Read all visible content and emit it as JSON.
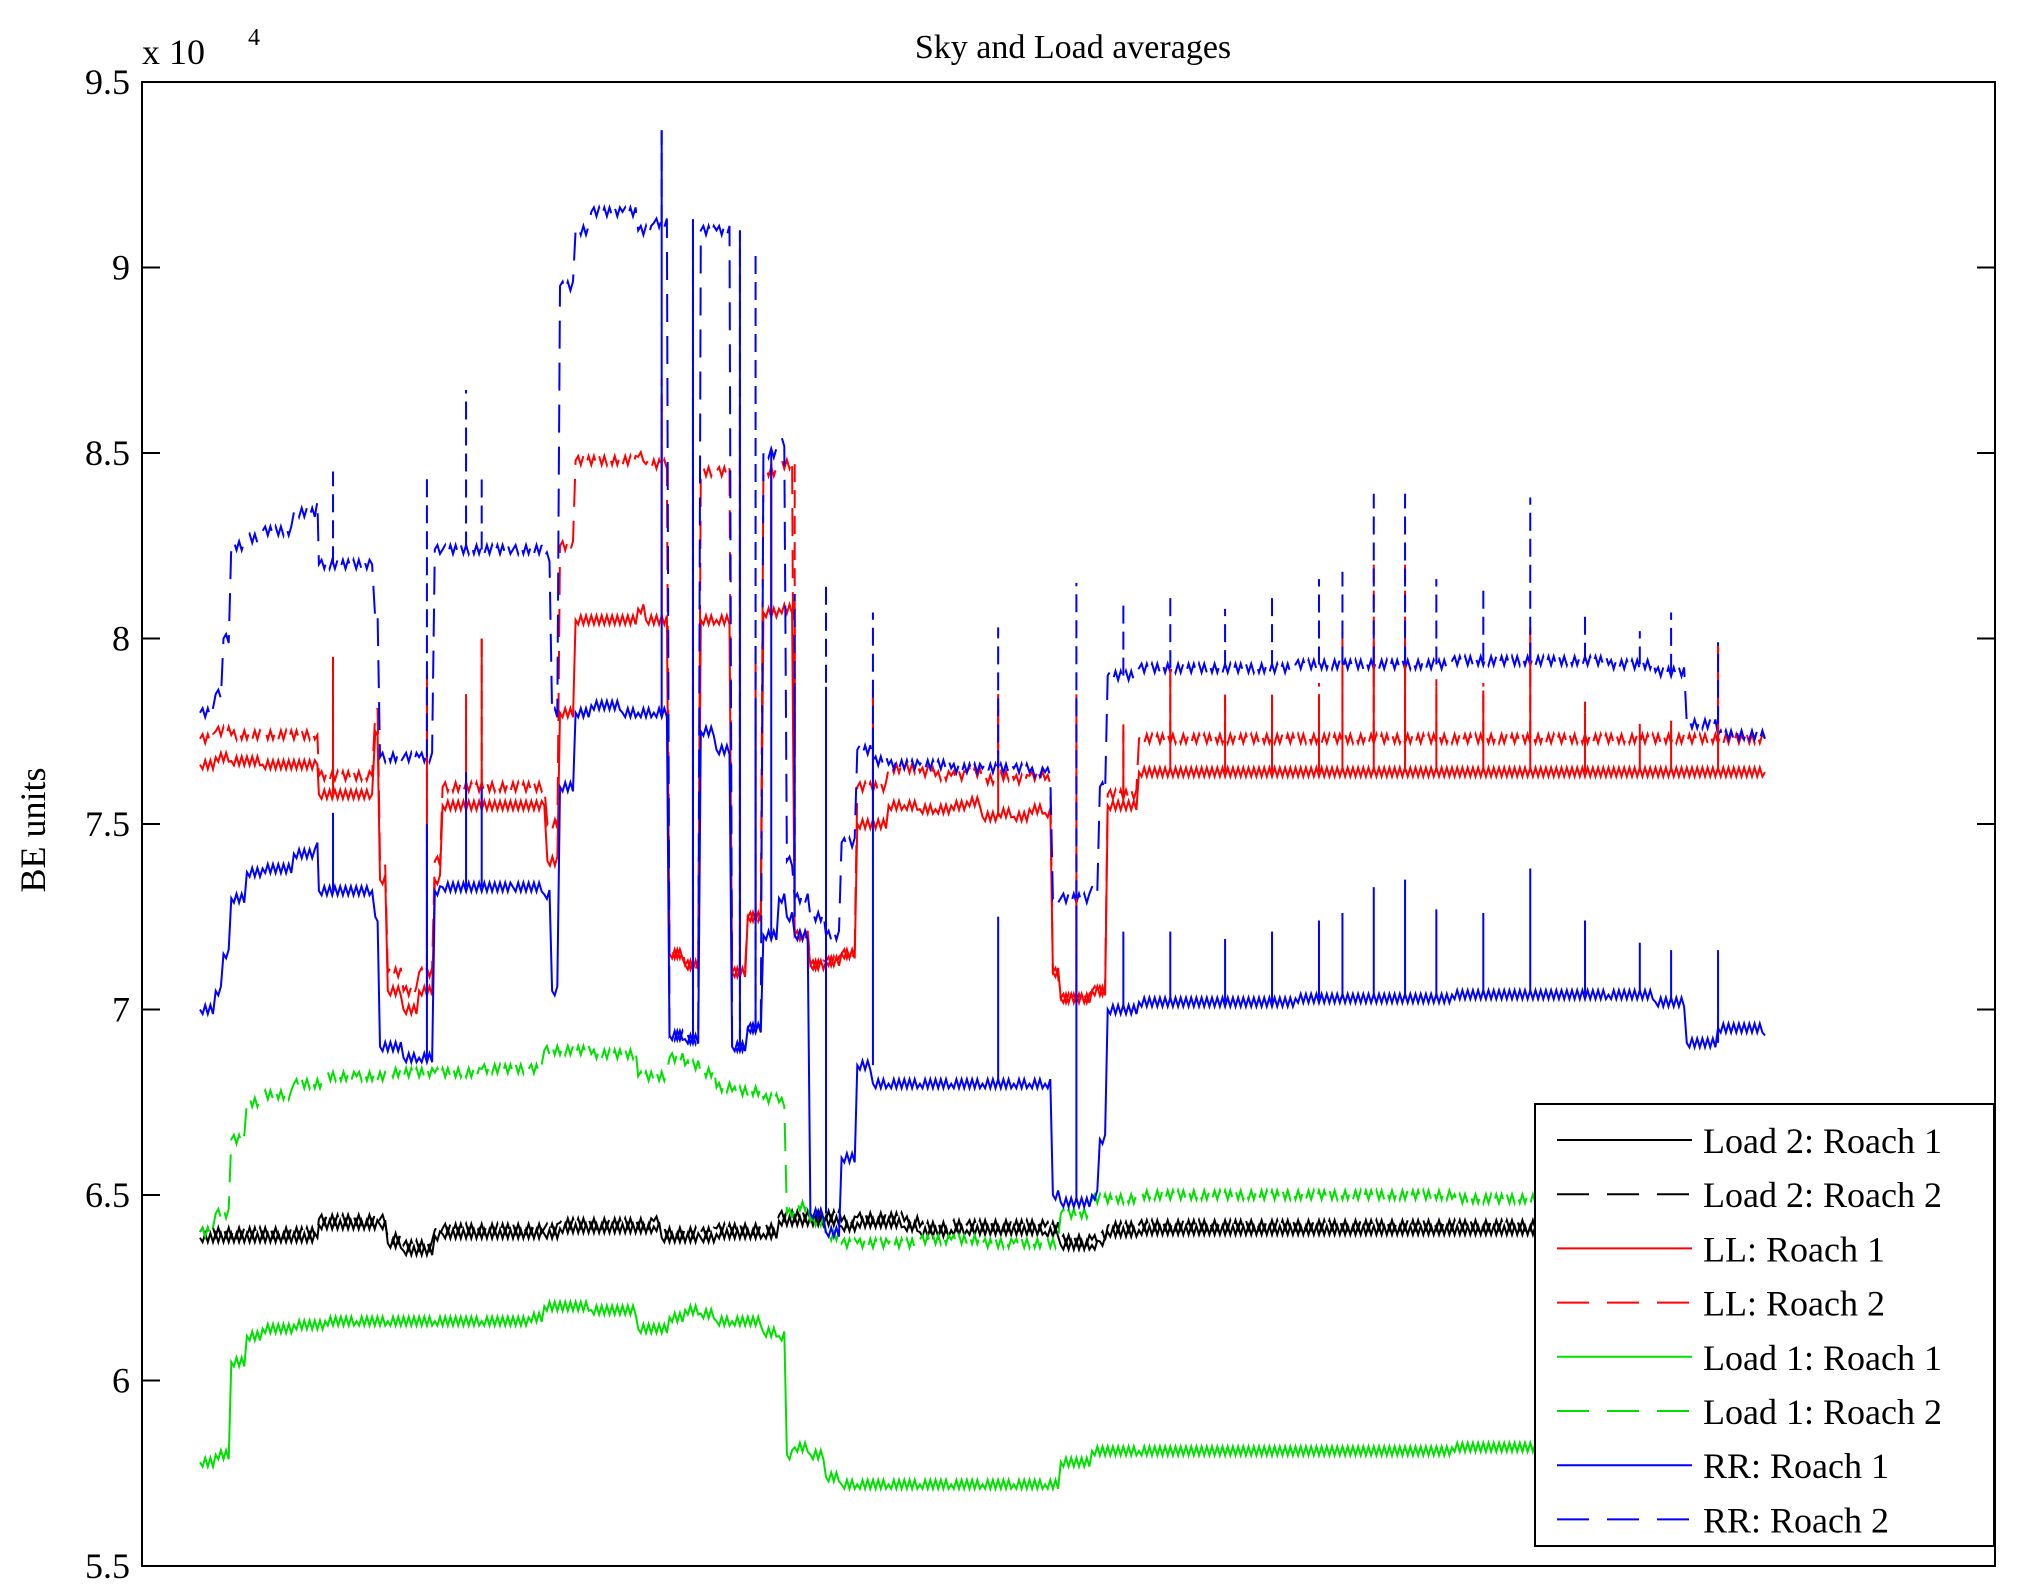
{
  "chart_data": {
    "type": "line",
    "title": "Sky and Load averages",
    "ylabel": "BE units",
    "xlabel": "",
    "y_multiplier": "x 10",
    "y_multiplier_exp": "4",
    "ylim": [
      55000,
      95000
    ],
    "xlim": [
      0,
      100
    ],
    "yticks": [
      55000,
      60000,
      65000,
      70000,
      75000,
      80000,
      85000,
      90000,
      95000
    ],
    "ytick_labels": [
      "5.5",
      "6",
      "6.5",
      "7",
      "7.5",
      "8",
      "8.5",
      "9",
      "9.5"
    ],
    "x_tick_labels_shown": false,
    "grid": false,
    "legend_position": "bottom-right",
    "colors": {
      "black": "#000000",
      "red": "#ff0000",
      "green": "#00e000",
      "blue": "#0000ff"
    },
    "series": [
      {
        "name": "Load 2: Roach 1",
        "color": "#000000",
        "dash": "solid",
        "x": [
          0,
          7.5,
          7.6,
          11.5,
          12,
          13,
          15,
          15.5,
          22,
          23,
          29,
          29.5,
          32,
          33,
          36,
          37,
          41,
          42,
          45,
          46,
          48,
          49,
          54,
          55,
          57,
          57.5,
          58,
          60,
          100
        ],
        "y": [
          63850,
          63850,
          64200,
          64200,
          63700,
          63500,
          63900,
          63950,
          63950,
          64100,
          64150,
          63850,
          63850,
          63950,
          63950,
          64300,
          64150,
          64250,
          64150,
          64000,
          64050,
          64050,
          64000,
          63650,
          63650,
          63750,
          64000,
          64050,
          64050
        ]
      },
      {
        "name": "Load 2: Roach 2",
        "color": "#000000",
        "dash": "dashed",
        "x": [
          0,
          7.5,
          7.6,
          11.5,
          12,
          13,
          15,
          15.5,
          22,
          23,
          29,
          29.5,
          32,
          33,
          36,
          37,
          41,
          42,
          45,
          46,
          48,
          49,
          54,
          55,
          57,
          57.5,
          58,
          60,
          100
        ],
        "y": [
          64000,
          64000,
          64350,
          64350,
          63850,
          63650,
          64050,
          64100,
          64100,
          64250,
          64300,
          64000,
          64000,
          64100,
          64100,
          64450,
          64300,
          64400,
          64300,
          64150,
          64200,
          64200,
          64150,
          63800,
          63800,
          63900,
          64150,
          64200,
          64200
        ]
      },
      {
        "name": "LL: Roach 1",
        "color": "#ff0000",
        "dash": "solid",
        "x": [
          0,
          1,
          2,
          4,
          7.5,
          7.6,
          11,
          11.2,
          11.5,
          12,
          13,
          14,
          15,
          15.5,
          22,
          22.2,
          23,
          24,
          28,
          28.5,
          30,
          31,
          32,
          33,
          34,
          35,
          36,
          37,
          38,
          39,
          40,
          41,
          42,
          44,
          45,
          46,
          47,
          48,
          49,
          50,
          51,
          52,
          53,
          54,
          54.5,
          55,
          57,
          58,
          60,
          100
        ],
        "y": [
          76600,
          76800,
          76700,
          76600,
          76600,
          75800,
          75800,
          77500,
          73500,
          70500,
          70000,
          70500,
          73500,
          75500,
          75500,
          74000,
          78000,
          80500,
          80800,
          80500,
          71500,
          71200,
          80500,
          80500,
          71000,
          72500,
          80700,
          80800,
          72000,
          71200,
          71300,
          71500,
          75000,
          75500,
          75500,
          75400,
          75400,
          75500,
          75600,
          75200,
          75300,
          75200,
          75400,
          75300,
          71000,
          70300,
          70500,
          75500,
          76400,
          76400
        ]
      },
      {
        "name": "LL: Roach 2",
        "color": "#ff0000",
        "dash": "dashed",
        "x": [
          0,
          1,
          2,
          4,
          7.5,
          7.6,
          11,
          11.2,
          11.5,
          12,
          13,
          14,
          15,
          15.5,
          22,
          22.2,
          23,
          24,
          28,
          28.5,
          30,
          31,
          32,
          33,
          34,
          35,
          36,
          37,
          38,
          39,
          40,
          41,
          42,
          44,
          45,
          46,
          47,
          48,
          49,
          50,
          51,
          52,
          53,
          54,
          54.5,
          55,
          57,
          58,
          60,
          100
        ],
        "y": [
          77300,
          77500,
          77400,
          77400,
          77400,
          76300,
          76300,
          78000,
          74000,
          71000,
          70500,
          71000,
          74000,
          76000,
          76000,
          75000,
          82500,
          84800,
          84900,
          84700,
          71500,
          71200,
          84500,
          84500,
          71000,
          72500,
          84500,
          84700,
          72000,
          71200,
          71300,
          71500,
          76000,
          76500,
          76500,
          76400,
          76300,
          76300,
          76400,
          76200,
          76300,
          76200,
          76300,
          76200,
          71000,
          70300,
          70500,
          75800,
          77300,
          77300
        ]
      },
      {
        "name": "Load 1: Roach 1",
        "color": "#00e000",
        "dash": "solid",
        "x": [
          0,
          1,
          2,
          3,
          4,
          6,
          8,
          10,
          12,
          15,
          18,
          21,
          22,
          25,
          28,
          30,
          31,
          32,
          33,
          34,
          36,
          37,
          37.5,
          38,
          39,
          40,
          41,
          42,
          44,
          46,
          48,
          50,
          52,
          54,
          55,
          57,
          60,
          80,
          100
        ],
        "y": [
          57800,
          58000,
          60500,
          61200,
          61400,
          61500,
          61600,
          61600,
          61600,
          61600,
          61600,
          61700,
          62000,
          61900,
          61400,
          61700,
          61900,
          61800,
          61600,
          61600,
          61300,
          61200,
          58000,
          58200,
          58000,
          57400,
          57200,
          57200,
          57200,
          57200,
          57200,
          57200,
          57200,
          57200,
          57800,
          58100,
          58100,
          58200,
          58200
        ]
      },
      {
        "name": "Load 1: Roach 2",
        "color": "#00e000",
        "dash": "dashed",
        "x": [
          0,
          1,
          2,
          3,
          4,
          6,
          8,
          10,
          12,
          15,
          18,
          21,
          22,
          25,
          28,
          30,
          31,
          32,
          33,
          34,
          36,
          37,
          37.5,
          38,
          39,
          40,
          41,
          42,
          44,
          46,
          48,
          50,
          52,
          54,
          55,
          57,
          60,
          80,
          100
        ],
        "y": [
          64000,
          64500,
          66500,
          67500,
          67700,
          68000,
          68200,
          68200,
          68300,
          68300,
          68400,
          68400,
          68900,
          68800,
          68200,
          68700,
          68500,
          68300,
          67900,
          67800,
          67600,
          67500,
          64500,
          64700,
          64300,
          63900,
          63700,
          63700,
          63700,
          63800,
          63800,
          63700,
          63700,
          63700,
          64500,
          64900,
          65000,
          64900,
          64800
        ]
      },
      {
        "name": "RR: Roach 1",
        "color": "#0000ff",
        "dash": "solid",
        "x": [
          0,
          1,
          1.5,
          2,
          3,
          4,
          6,
          7.5,
          7.6,
          11,
          11.2,
          11.5,
          13,
          14,
          15,
          15.5,
          20,
          22,
          22.5,
          23,
          24,
          25,
          27,
          28,
          29,
          30,
          31,
          32,
          33,
          34,
          35,
          36,
          37,
          37.5,
          38,
          39,
          40,
          41,
          42,
          43,
          44,
          46,
          48,
          50,
          52,
          53,
          54,
          54.5,
          55,
          57,
          57.5,
          58,
          60,
          70,
          80,
          90,
          93,
          95,
          97,
          100
        ],
        "y": [
          70000,
          70500,
          71500,
          73000,
          73700,
          73800,
          74200,
          74500,
          73200,
          73200,
          72500,
          69000,
          68700,
          68700,
          73200,
          73300,
          73300,
          73100,
          70500,
          76000,
          78000,
          78200,
          78000,
          78000,
          78000,
          69300,
          69200,
          77500,
          77000,
          69000,
          69500,
          72000,
          73000,
          72500,
          72000,
          64500,
          64000,
          66000,
          68500,
          68000,
          68000,
          68000,
          68000,
          68000,
          68000,
          68000,
          68000,
          65000,
          64800,
          65000,
          66500,
          70000,
          70200,
          70300,
          70400,
          70400,
          70200,
          69100,
          69500,
          69300
        ]
      },
      {
        "name": "RR: Roach 2",
        "color": "#0000ff",
        "dash": "dashed",
        "x": [
          0,
          1,
          1.5,
          2,
          3,
          4,
          6,
          7.5,
          7.6,
          11,
          11.2,
          11.5,
          13,
          14,
          15,
          15.5,
          20,
          22,
          22.5,
          23,
          24,
          25,
          27,
          28,
          29,
          30,
          31,
          32,
          33,
          34,
          35,
          36,
          37,
          37.5,
          38,
          39,
          40,
          41,
          42,
          43,
          44,
          46,
          48,
          50,
          52,
          53,
          54,
          54.5,
          55,
          57,
          57.5,
          58,
          60,
          70,
          80,
          90,
          93,
          95,
          97,
          100
        ],
        "y": [
          78000,
          78500,
          80000,
          82500,
          82700,
          82900,
          83400,
          83700,
          82000,
          82000,
          80500,
          76800,
          76800,
          76800,
          82400,
          82400,
          82400,
          82200,
          78000,
          89500,
          91000,
          91500,
          91500,
          91000,
          91200,
          69300,
          69200,
          91000,
          91000,
          69000,
          69500,
          85000,
          85300,
          74000,
          73000,
          72500,
          72000,
          74500,
          77000,
          76700,
          76600,
          76600,
          76500,
          76500,
          76500,
          76400,
          76400,
          73000,
          73000,
          73300,
          76000,
          79000,
          79200,
          79300,
          79400,
          79300,
          79100,
          77700,
          77400,
          77300
        ]
      }
    ],
    "spikes": {
      "description_free": true,
      "x": [
        8.5,
        14.5,
        17,
        18,
        29.5,
        31.5,
        34.5,
        35.5,
        36.5,
        38,
        40,
        43,
        51,
        56,
        59,
        62,
        65.5,
        68.5,
        71.5,
        73,
        75,
        77,
        79,
        82,
        85,
        88.5,
        92,
        94,
        97
      ],
      "heights": {
        "RR: Roach 2": [
          84500,
          84500,
          86700,
          84300,
          93700,
          91300,
          91000,
          90500,
          85000,
          81200,
          81500,
          80700,
          80300,
          81500,
          80900,
          81200,
          80800,
          81200,
          81600,
          81800,
          83900,
          83900,
          81600,
          81300,
          83800,
          80800,
          80200,
          80700,
          79900
        ],
        "RR: Roach 1": [
          75300,
          75000,
          76400,
          76000,
          93700,
          91300,
          91000,
          78300,
          85000,
          78800,
          78700,
          77600,
          72500,
          72800,
          72100,
          72100,
          71900,
          72100,
          72400,
          72600,
          73300,
          73500,
          72700,
          72600,
          73800,
          72400,
          71800,
          71600,
          71600
        ],
        "LL: Roach 1": [
          79500,
          78800,
          78200,
          80000,
          86500,
          86500,
          86000,
          79500,
          84700,
          77000,
          77300,
          78500,
          78300,
          78300,
          77500,
          79000,
          78400,
          78400,
          78500,
          80000,
          80000,
          80000,
          78700,
          78600,
          80200,
          78000,
          77400,
          77500,
          79800
        ],
        "LL: Roach 2": [
          79500,
          79000,
          78500,
          80000,
          87000,
          86800,
          86300,
          79800,
          84700,
          77300,
          77500,
          78800,
          78500,
          78500,
          77700,
          79300,
          78700,
          78700,
          78800,
          80200,
          82000,
          82000,
          78900,
          78800,
          80300,
          78300,
          77700,
          77800,
          79900
        ]
      }
    }
  }
}
